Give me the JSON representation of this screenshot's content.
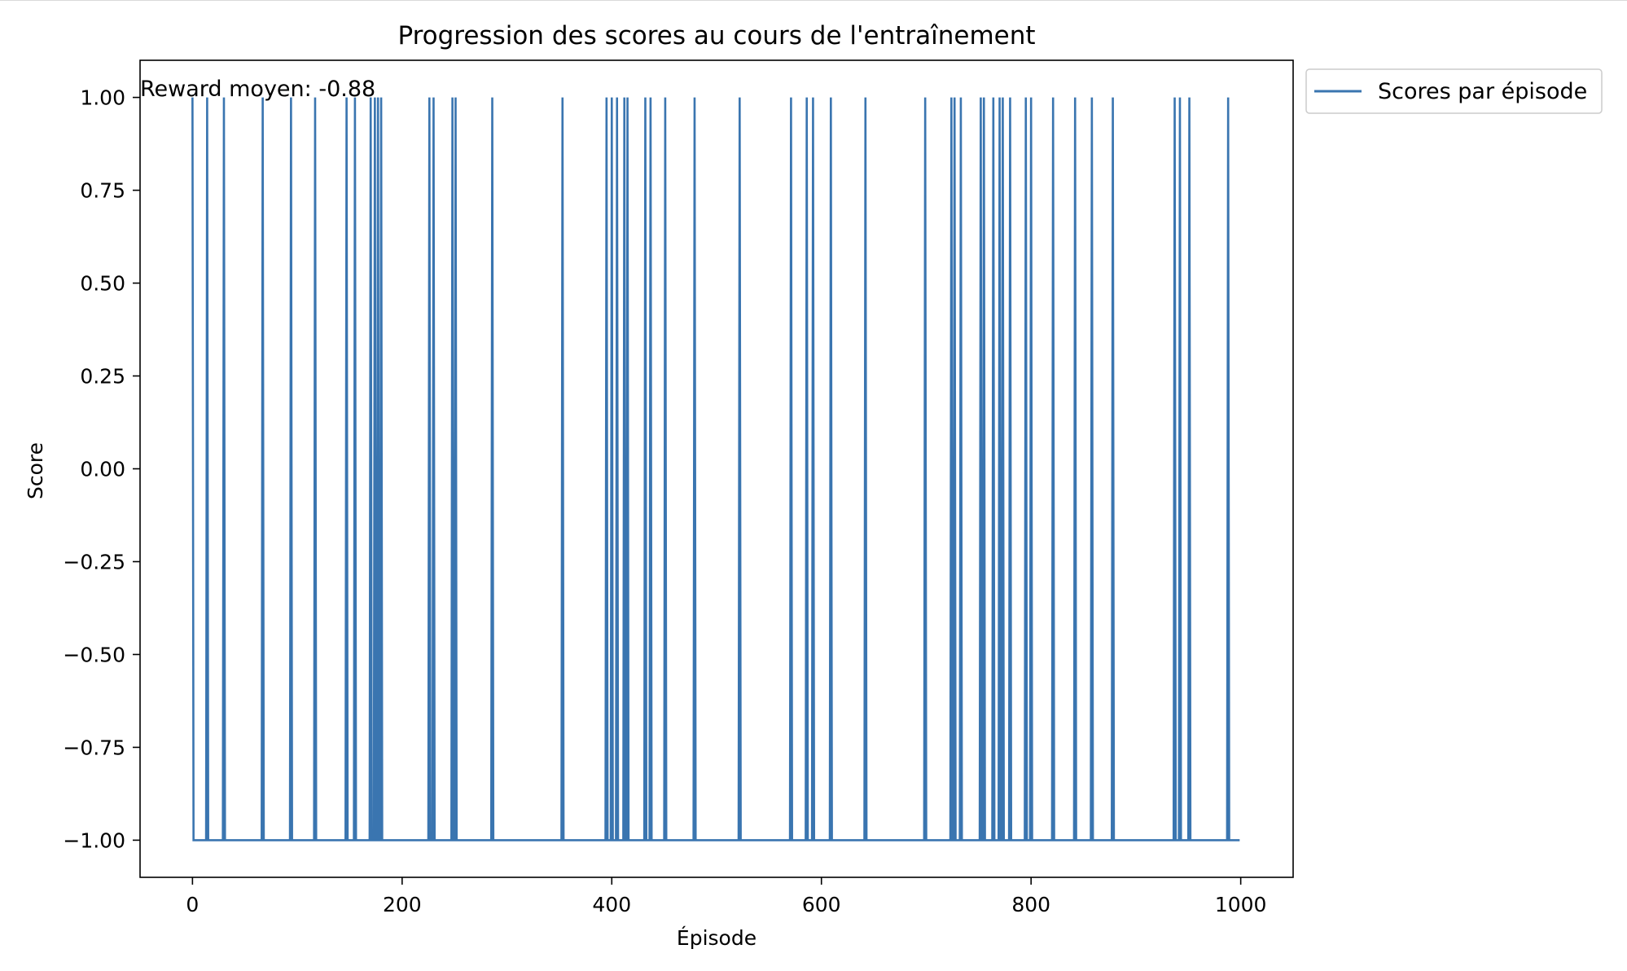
{
  "chart_data": {
    "type": "line",
    "title": "Progression des scores au cours de l'entraînement",
    "xlabel": "Épisode",
    "ylabel": "Score",
    "xlim": [
      -50,
      1050
    ],
    "ylim": [
      -1.1,
      1.1
    ],
    "x_ticks": [
      0,
      200,
      400,
      600,
      800,
      1000
    ],
    "x_tick_labels": [
      "0",
      "200",
      "400",
      "600",
      "800",
      "1000"
    ],
    "y_ticks": [
      1.0,
      0.75,
      0.5,
      0.25,
      0.0,
      -0.25,
      -0.5,
      -0.75,
      -1.0
    ],
    "y_tick_labels": [
      "1.00",
      "0.75",
      "0.50",
      "0.25",
      "0.00",
      "−0.25",
      "−0.50",
      "−0.75",
      "−1.00"
    ],
    "grid": false,
    "legend_position": "outside upper-right",
    "annotation": "Reward moyen: -0.88",
    "series": [
      {
        "name": "Scores par épisode",
        "color": "#3a75b0",
        "n_episodes": 1000,
        "base_value": -1,
        "win_value": 1,
        "win_episodes": [
          0,
          14,
          30,
          67,
          94,
          117,
          147,
          155,
          170,
          174,
          177,
          180,
          226,
          230,
          248,
          251,
          286,
          353,
          395,
          400,
          405,
          412,
          415,
          432,
          437,
          451,
          479,
          522,
          571,
          586,
          592,
          609,
          642,
          699,
          724,
          727,
          733,
          752,
          755,
          764,
          770,
          773,
          780,
          795,
          800,
          821,
          842,
          858,
          878,
          937,
          942,
          951,
          988
        ]
      }
    ]
  }
}
